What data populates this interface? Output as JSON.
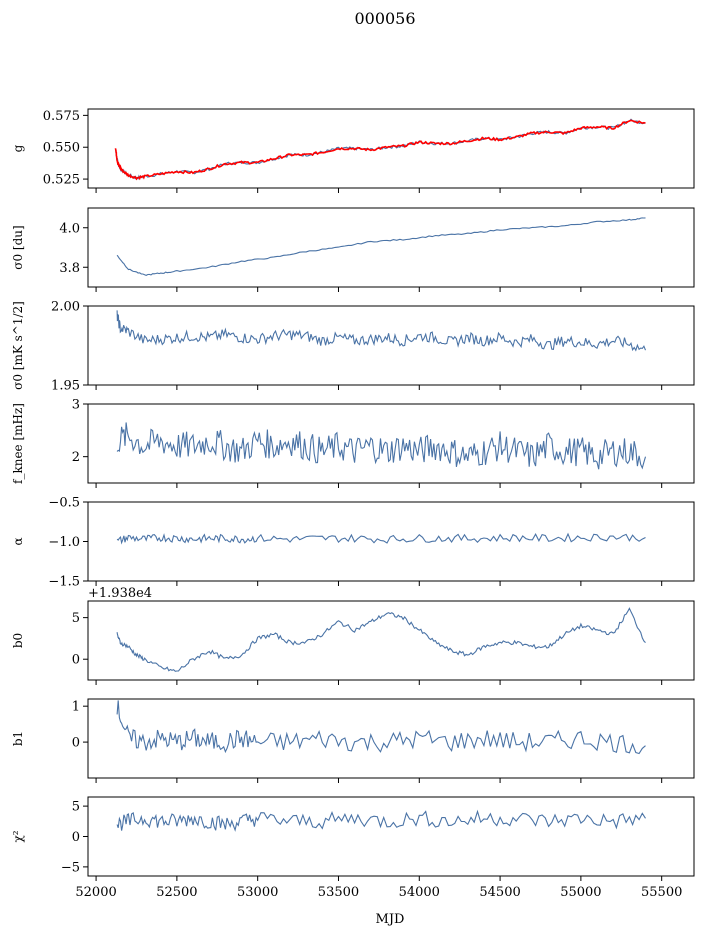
{
  "figure": {
    "title": "000056",
    "xlabel": "MJD",
    "xlim": [
      51950,
      55700
    ],
    "xticks": [
      52000,
      52500,
      53000,
      53500,
      54000,
      54500,
      55000,
      55500
    ],
    "series_color": "#4a73a6",
    "fit_color": "#ff0000"
  },
  "chart_data": [
    {
      "type": "line",
      "name": "g",
      "ylabel": "g",
      "ylim": [
        0.518,
        0.58
      ],
      "yticks": [
        0.525,
        0.55,
        0.575
      ],
      "ytick_labels": [
        "0.525",
        "0.550",
        "0.575"
      ],
      "offset_text": "",
      "series": [
        {
          "color": "#4a73a6",
          "x": [
            52120,
            52140,
            52160,
            52200,
            52250,
            52300,
            52400,
            52500,
            52600,
            52700,
            52800,
            52900,
            53000,
            53100,
            53200,
            53300,
            53400,
            53500,
            53600,
            53700,
            53800,
            53900,
            54000,
            54100,
            54200,
            54300,
            54400,
            54500,
            54600,
            54700,
            54800,
            54900,
            55000,
            55100,
            55200,
            55300,
            55400
          ],
          "y": [
            0.548,
            0.535,
            0.532,
            0.528,
            0.526,
            0.527,
            0.529,
            0.531,
            0.53,
            0.533,
            0.537,
            0.538,
            0.538,
            0.541,
            0.544,
            0.544,
            0.546,
            0.549,
            0.549,
            0.548,
            0.55,
            0.551,
            0.554,
            0.553,
            0.553,
            0.555,
            0.557,
            0.556,
            0.558,
            0.561,
            0.562,
            0.561,
            0.565,
            0.566,
            0.565,
            0.571,
            0.569
          ]
        },
        {
          "color": "#ff0000",
          "x": [
            52120,
            52130,
            52140,
            52160,
            52200,
            52250,
            52300,
            52400,
            52500,
            52600,
            52700,
            52800,
            52900,
            53000,
            53100,
            53200,
            53300,
            53400,
            53500,
            53600,
            53700,
            53800,
            53900,
            54000,
            54100,
            54200,
            54300,
            54400,
            54500,
            54600,
            54700,
            54800,
            54900,
            55000,
            55100,
            55200,
            55300,
            55400
          ],
          "y": [
            0.55,
            0.54,
            0.536,
            0.532,
            0.528,
            0.526,
            0.527,
            0.529,
            0.531,
            0.53,
            0.533,
            0.537,
            0.538,
            0.538,
            0.541,
            0.544,
            0.544,
            0.546,
            0.549,
            0.549,
            0.548,
            0.55,
            0.551,
            0.554,
            0.553,
            0.553,
            0.555,
            0.557,
            0.556,
            0.558,
            0.561,
            0.562,
            0.561,
            0.565,
            0.566,
            0.565,
            0.571,
            0.569
          ]
        }
      ]
    },
    {
      "type": "line",
      "name": "sigma0-du",
      "ylabel": "σ0 [du]",
      "ylim": [
        3.7,
        4.1
      ],
      "yticks": [
        3.8,
        4.0
      ],
      "ytick_labels": [
        "3.8",
        "4.0"
      ],
      "offset_text": "",
      "series": [
        {
          "color": "#4a73a6",
          "x": [
            52130,
            52200,
            52300,
            52400,
            52500,
            52700,
            52900,
            53100,
            53300,
            53500,
            53700,
            53900,
            54100,
            54300,
            54500,
            54700,
            54900,
            55100,
            55300,
            55400
          ],
          "y": [
            3.86,
            3.79,
            3.76,
            3.77,
            3.78,
            3.8,
            3.83,
            3.85,
            3.88,
            3.9,
            3.93,
            3.94,
            3.96,
            3.97,
            3.99,
            4.0,
            4.01,
            4.03,
            4.04,
            4.05
          ]
        }
      ]
    },
    {
      "type": "line",
      "name": "sigma0-mk",
      "ylabel": "σ0 [mK s^1/2]",
      "ylim": [
        1.95,
        2.0
      ],
      "yticks": [
        1.95,
        2.0
      ],
      "ytick_labels": [
        "1.95",
        "2.00"
      ],
      "offset_text": "",
      "series": [
        {
          "color": "#4a73a6",
          "x": [
            52130,
            52150,
            52200,
            52300,
            52400,
            52500,
            52600,
            52700,
            52800,
            52900,
            53000,
            53100,
            53200,
            53300,
            53400,
            53500,
            53600,
            53700,
            53800,
            53900,
            54000,
            54100,
            54200,
            54300,
            54400,
            54500,
            54600,
            54700,
            54800,
            54900,
            55000,
            55100,
            55200,
            55300,
            55400
          ],
          "y": [
            1.994,
            1.986,
            1.984,
            1.978,
            1.979,
            1.98,
            1.981,
            1.98,
            1.982,
            1.98,
            1.979,
            1.981,
            1.982,
            1.981,
            1.978,
            1.98,
            1.978,
            1.979,
            1.98,
            1.978,
            1.981,
            1.98,
            1.977,
            1.98,
            1.978,
            1.98,
            1.977,
            1.979,
            1.975,
            1.978,
            1.977,
            1.976,
            1.978,
            1.976,
            1.972
          ]
        }
      ]
    },
    {
      "type": "line",
      "name": "fknee",
      "ylabel": "f_knee [mHz]",
      "ylim": [
        1.5,
        3.0
      ],
      "yticks": [
        2,
        3
      ],
      "ytick_labels": [
        "2",
        "3"
      ],
      "offset_text": "",
      "series": [
        {
          "color": "#4a73a6",
          "x": [
            52130,
            52200,
            52300,
            52400,
            52500,
            52600,
            52700,
            52800,
            52900,
            53000,
            53100,
            53200,
            53300,
            53400,
            53500,
            53600,
            53700,
            53800,
            53900,
            54000,
            54100,
            54200,
            54300,
            54400,
            54500,
            54600,
            54700,
            54800,
            54900,
            55000,
            55100,
            55200,
            55300,
            55400
          ],
          "y": [
            2.3,
            2.4,
            2.2,
            2.3,
            2.2,
            2.2,
            2.3,
            2.2,
            2.1,
            2.3,
            2.2,
            2.3,
            2.2,
            2.1,
            2.2,
            2.1,
            2.2,
            2.1,
            2.2,
            2.1,
            2.2,
            2.1,
            2.0,
            2.1,
            2.2,
            2.1,
            2.0,
            2.2,
            2.1,
            2.1,
            2.0,
            2.1,
            2.1,
            2.0
          ]
        }
      ]
    },
    {
      "type": "line",
      "name": "alpha",
      "ylabel": "α",
      "ylim": [
        -1.5,
        -0.5
      ],
      "yticks": [
        -1.5,
        -1.0,
        -0.5
      ],
      "ytick_labels": [
        "−1.5",
        "−1.0",
        "−0.5"
      ],
      "offset_text": "",
      "series": [
        {
          "color": "#4a73a6",
          "x": [
            52130,
            52200,
            52300,
            52400,
            52500,
            52600,
            52700,
            52800,
            52900,
            53000,
            53200,
            53400,
            53600,
            53800,
            54000,
            54200,
            54400,
            54600,
            54800,
            55000,
            55200,
            55400
          ],
          "y": [
            -1.0,
            -0.95,
            -0.97,
            -0.95,
            -0.96,
            -0.97,
            -0.96,
            -0.96,
            -0.97,
            -0.96,
            -0.97,
            -0.96,
            -0.96,
            -0.97,
            -0.96,
            -0.96,
            -0.96,
            -0.95,
            -0.96,
            -0.95,
            -0.94,
            -0.95
          ]
        }
      ]
    },
    {
      "type": "line",
      "name": "b0",
      "ylabel": "b0",
      "ylim": [
        -2.5,
        7.0
      ],
      "yticks": [
        0,
        5
      ],
      "ytick_labels": [
        "0",
        "5"
      ],
      "offset_text": "+1.938e4",
      "series": [
        {
          "color": "#4a73a6",
          "x": [
            52130,
            52150,
            52200,
            52250,
            52300,
            52400,
            52500,
            52600,
            52700,
            52800,
            52900,
            53000,
            53100,
            53200,
            53300,
            53400,
            53500,
            53600,
            53700,
            53800,
            53900,
            54000,
            54100,
            54200,
            54300,
            54400,
            54500,
            54600,
            54700,
            54800,
            54900,
            55000,
            55100,
            55200,
            55300,
            55400
          ],
          "y": [
            3.0,
            2.0,
            1.5,
            0.5,
            0.0,
            -1.0,
            -1.5,
            0.0,
            1.0,
            0.0,
            0.5,
            2.5,
            3.0,
            2.0,
            2.0,
            3.0,
            4.5,
            3.5,
            4.5,
            5.5,
            5.0,
            3.5,
            2.0,
            1.0,
            0.5,
            1.5,
            2.0,
            2.0,
            1.5,
            1.5,
            3.0,
            4.0,
            3.5,
            3.0,
            6.0,
            2.0
          ]
        }
      ]
    },
    {
      "type": "line",
      "name": "b1",
      "ylabel": "b1",
      "ylim": [
        -1.0,
        1.2
      ],
      "yticks": [
        0,
        1
      ],
      "ytick_labels": [
        "0",
        "1"
      ],
      "offset_text": "",
      "series": [
        {
          "color": "#4a73a6",
          "x": [
            52130,
            52200,
            52300,
            52400,
            52500,
            52600,
            52700,
            52800,
            52900,
            53000,
            53200,
            53400,
            53600,
            53800,
            54000,
            54200,
            54400,
            54600,
            54800,
            55000,
            55200,
            55400
          ],
          "y": [
            1.0,
            0.1,
            0.0,
            0.1,
            0.0,
            0.1,
            0.0,
            0.0,
            0.1,
            0.0,
            0.0,
            0.1,
            0.0,
            0.0,
            0.1,
            0.0,
            0.1,
            0.0,
            0.0,
            0.1,
            0.0,
            -0.1
          ]
        }
      ]
    },
    {
      "type": "line",
      "name": "chi2",
      "ylabel": "χ²",
      "ylim": [
        -6.5,
        6.5
      ],
      "yticks": [
        -5,
        0,
        5
      ],
      "ytick_labels": [
        "−5",
        "0",
        "5"
      ],
      "offset_text": "",
      "series": [
        {
          "color": "#4a73a6",
          "x": [
            52130,
            52200,
            52300,
            52400,
            52500,
            52600,
            52700,
            52800,
            52900,
            53000,
            53200,
            53400,
            53600,
            53800,
            54000,
            54200,
            54400,
            54600,
            54800,
            55000,
            55200,
            55400
          ],
          "y": [
            2.0,
            2.5,
            3.0,
            2.5,
            2.5,
            3.0,
            2.5,
            2.0,
            2.5,
            3.0,
            2.5,
            2.5,
            3.0,
            2.5,
            3.0,
            2.5,
            3.0,
            3.0,
            2.5,
            3.0,
            2.5,
            3.0
          ]
        }
      ]
    }
  ]
}
